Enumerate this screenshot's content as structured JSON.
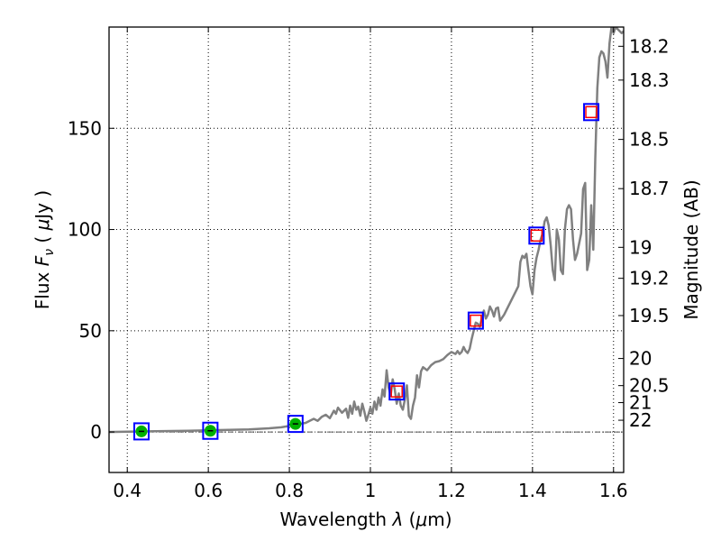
{
  "chart_data": {
    "type": "line",
    "xlabel": {
      "prefix": "Wavelength  ",
      "symbol": "λ",
      "unit_open": " (",
      "unit_mu": "μ",
      "unit_rest": "m)"
    },
    "ylabel": {
      "prefix": "Flux  ",
      "symbol": "F",
      "subscript": "ν",
      "unit_open": "  (  ",
      "unit_mu": "μ",
      "unit_rest": "Jy  )"
    },
    "y2label": "Magnitude (AB)",
    "xlim": [
      0.355,
      1.625
    ],
    "ylim": [
      -20,
      200
    ],
    "grid": true,
    "x_ticks": [
      0.4,
      0.6,
      0.8,
      1.0,
      1.2,
      1.4,
      1.6
    ],
    "x_tick_labels": [
      "0.4",
      "0.6",
      "0.8",
      "1",
      "1.2",
      "1.4",
      "1.6"
    ],
    "y_ticks": [
      0,
      50,
      100,
      150
    ],
    "y_tick_labels": [
      "0",
      "50",
      "100",
      "150"
    ],
    "y2_ticks": [
      {
        "flux": 190.5,
        "label": "18.2"
      },
      {
        "flux": 173.8,
        "label": "18.3"
      },
      {
        "flux": 144.5,
        "label": "18.5"
      },
      {
        "flux": 120.2,
        "label": "18.7"
      },
      {
        "flux": 91.2,
        "label": "19"
      },
      {
        "flux": 75.9,
        "label": "19.2"
      },
      {
        "flux": 57.5,
        "label": "19.5"
      },
      {
        "flux": 36.3,
        "label": "20"
      },
      {
        "flux": 22.9,
        "label": "20.5"
      },
      {
        "flux": 14.5,
        "label": "21"
      },
      {
        "flux": 5.8,
        "label": "22"
      }
    ],
    "series": [
      {
        "color": "#808080",
        "points": [
          [
            0.35,
            0
          ],
          [
            0.45,
            0.3
          ],
          [
            0.55,
            0.6
          ],
          [
            0.65,
            1.0
          ],
          [
            0.7,
            1.3
          ],
          [
            0.75,
            1.8
          ],
          [
            0.78,
            2.3
          ],
          [
            0.8,
            3.0
          ],
          [
            0.82,
            3.8
          ],
          [
            0.84,
            4.5
          ],
          [
            0.86,
            6.5
          ],
          [
            0.87,
            5.5
          ],
          [
            0.88,
            7.5
          ],
          [
            0.89,
            8.5
          ],
          [
            0.9,
            6.8
          ],
          [
            0.91,
            10.5
          ],
          [
            0.915,
            9.0
          ],
          [
            0.92,
            12.0
          ],
          [
            0.93,
            9.5
          ],
          [
            0.94,
            11.5
          ],
          [
            0.945,
            7.0
          ],
          [
            0.95,
            13.0
          ],
          [
            0.955,
            9.0
          ],
          [
            0.96,
            15.0
          ],
          [
            0.965,
            11.0
          ],
          [
            0.97,
            12.5
          ],
          [
            0.975,
            8.0
          ],
          [
            0.98,
            14.0
          ],
          [
            0.985,
            10.0
          ],
          [
            0.99,
            5.5
          ],
          [
            0.995,
            8.5
          ],
          [
            1.0,
            12.0
          ],
          [
            1.005,
            9.0
          ],
          [
            1.01,
            15.0
          ],
          [
            1.015,
            11.0
          ],
          [
            1.02,
            17.0
          ],
          [
            1.025,
            13.0
          ],
          [
            1.03,
            21.0
          ],
          [
            1.035,
            17.5
          ],
          [
            1.04,
            30.5
          ],
          [
            1.045,
            22.0
          ],
          [
            1.05,
            18.0
          ],
          [
            1.055,
            26.0
          ],
          [
            1.06,
            21.0
          ],
          [
            1.065,
            14.0
          ],
          [
            1.07,
            19.0
          ],
          [
            1.075,
            13.0
          ],
          [
            1.08,
            11.0
          ],
          [
            1.085,
            16.0
          ],
          [
            1.09,
            23.0
          ],
          [
            1.095,
            8.0
          ],
          [
            1.1,
            6.5
          ],
          [
            1.105,
            13.0
          ],
          [
            1.11,
            17.0
          ],
          [
            1.115,
            28.0
          ],
          [
            1.12,
            22.0
          ],
          [
            1.125,
            30.0
          ],
          [
            1.13,
            32.0
          ],
          [
            1.14,
            30.5
          ],
          [
            1.15,
            33.0
          ],
          [
            1.16,
            34.5
          ],
          [
            1.17,
            35.0
          ],
          [
            1.18,
            36.0
          ],
          [
            1.19,
            38.0
          ],
          [
            1.2,
            39.5
          ],
          [
            1.205,
            39.0
          ],
          [
            1.21,
            38.5
          ],
          [
            1.215,
            40.0
          ],
          [
            1.22,
            38.5
          ],
          [
            1.225,
            39.5
          ],
          [
            1.23,
            42.0
          ],
          [
            1.235,
            40.0
          ],
          [
            1.24,
            39.0
          ],
          [
            1.245,
            41.0
          ],
          [
            1.25,
            46.0
          ],
          [
            1.255,
            50.0
          ],
          [
            1.26,
            54.0
          ],
          [
            1.265,
            53.5
          ],
          [
            1.27,
            52.0
          ],
          [
            1.275,
            56.0
          ],
          [
            1.28,
            60.0
          ],
          [
            1.285,
            56.0
          ],
          [
            1.29,
            58.0
          ],
          [
            1.295,
            62.0
          ],
          [
            1.3,
            60.0
          ],
          [
            1.305,
            57.0
          ],
          [
            1.31,
            61.0
          ],
          [
            1.315,
            61.5
          ],
          [
            1.32,
            55.0
          ],
          [
            1.33,
            58.0
          ],
          [
            1.34,
            62.0
          ],
          [
            1.35,
            66.0
          ],
          [
            1.36,
            70.0
          ],
          [
            1.365,
            72.0
          ],
          [
            1.37,
            84.0
          ],
          [
            1.375,
            87.0
          ],
          [
            1.38,
            86.0
          ],
          [
            1.385,
            88.0
          ],
          [
            1.39,
            80.0
          ],
          [
            1.395,
            72.0
          ],
          [
            1.4,
            68.0
          ],
          [
            1.405,
            80.0
          ],
          [
            1.41,
            86.0
          ],
          [
            1.415,
            90.0
          ],
          [
            1.42,
            95.0
          ],
          [
            1.425,
            98.0
          ],
          [
            1.43,
            104.0
          ],
          [
            1.435,
            106.0
          ],
          [
            1.44,
            102.0
          ],
          [
            1.445,
            92.0
          ],
          [
            1.45,
            80.0
          ],
          [
            1.455,
            75.0
          ],
          [
            1.46,
            100.0
          ],
          [
            1.465,
            95.0
          ],
          [
            1.47,
            80.0
          ],
          [
            1.475,
            78.0
          ],
          [
            1.48,
            100.0
          ],
          [
            1.485,
            110.0
          ],
          [
            1.49,
            112.0
          ],
          [
            1.495,
            110.0
          ],
          [
            1.5,
            95.0
          ],
          [
            1.505,
            85.0
          ],
          [
            1.51,
            88.0
          ],
          [
            1.52,
            98.0
          ],
          [
            1.525,
            120.0
          ],
          [
            1.53,
            123.0
          ],
          [
            1.535,
            80.0
          ],
          [
            1.54,
            85.0
          ],
          [
            1.545,
            112.0
          ],
          [
            1.55,
            90.0
          ],
          [
            1.555,
            135.0
          ],
          [
            1.56,
            170.0
          ],
          [
            1.565,
            185.0
          ],
          [
            1.57,
            188.0
          ],
          [
            1.575,
            187.0
          ],
          [
            1.58,
            183.0
          ],
          [
            1.585,
            175.0
          ],
          [
            1.59,
            192.0
          ],
          [
            1.595,
            200.0
          ],
          [
            1.6,
            197.0
          ],
          [
            1.605,
            200.0
          ],
          [
            1.61,
            199.0
          ],
          [
            1.62,
            197.0
          ],
          [
            1.625,
            198.0
          ]
        ]
      }
    ],
    "blue_squares": [
      [
        0.435,
        0.3
      ],
      [
        0.605,
        0.6
      ],
      [
        0.815,
        4.0
      ],
      [
        1.065,
        20.0
      ],
      [
        1.26,
        55.0
      ],
      [
        1.41,
        97.0
      ],
      [
        1.545,
        158.0
      ]
    ],
    "red_squares": [
      [
        1.065,
        20.0
      ],
      [
        1.26,
        55.0
      ],
      [
        1.41,
        97.0
      ],
      [
        1.545,
        158.0
      ]
    ],
    "green_points": [
      [
        0.435,
        0.3
      ],
      [
        0.605,
        0.6
      ],
      [
        0.815,
        4.0
      ]
    ],
    "colors": {
      "line": "#808080",
      "blue_marker": "#0000ff",
      "red_marker": "#ff0000",
      "green_marker": "#00b000",
      "grid": "#000000",
      "zero_line": "#555555"
    }
  }
}
